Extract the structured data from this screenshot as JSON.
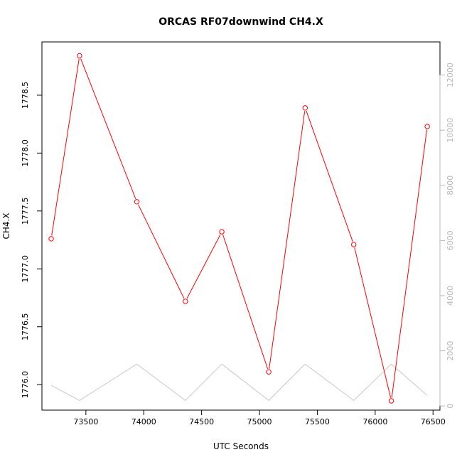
{
  "chart_data": {
    "type": "line",
    "title": "ORCAS RF07downwind CH4.X",
    "xlabel": "UTC Seconds",
    "ylabel": "CH4.X",
    "xlim": [
      73120,
      76560
    ],
    "ylim": [
      1775.78,
      1778.96
    ],
    "y2lim": [
      -150,
      13200
    ],
    "x_ticks": [
      73500,
      74000,
      74500,
      75000,
      75500,
      76000,
      76500
    ],
    "y_ticks": [
      1776.0,
      1776.5,
      1777.0,
      1777.5,
      1778.0,
      1778.5
    ],
    "y_tick_labels": [
      "1776.0",
      "1776.5",
      "1777.0",
      "1777.5",
      "1778.0",
      "1778.5"
    ],
    "y2_ticks": [
      0,
      2000,
      4000,
      6000,
      8000,
      10000,
      12000
    ],
    "grid": false,
    "colors": {
      "primary": "#ff0000",
      "secondary": "#c8c8c8",
      "right_axis": "#b8b8b8"
    },
    "series": [
      {
        "axis": "left",
        "marker": "open-circle",
        "x": [
          73200,
          73445,
          73940,
          74360,
          74675,
          75080,
          75395,
          75815,
          76140,
          76450
        ],
        "y": [
          1777.26,
          1778.84,
          1777.58,
          1776.72,
          1777.32,
          1776.11,
          1778.39,
          1777.21,
          1775.86,
          1778.23
        ]
      },
      {
        "axis": "right",
        "marker": "none",
        "x": [
          73200,
          73445,
          73940,
          74360,
          74675,
          75080,
          75395,
          75815,
          76140,
          76450
        ],
        "y": [
          750,
          200,
          1520,
          200,
          1520,
          200,
          1520,
          200,
          1520,
          380
        ]
      }
    ]
  }
}
